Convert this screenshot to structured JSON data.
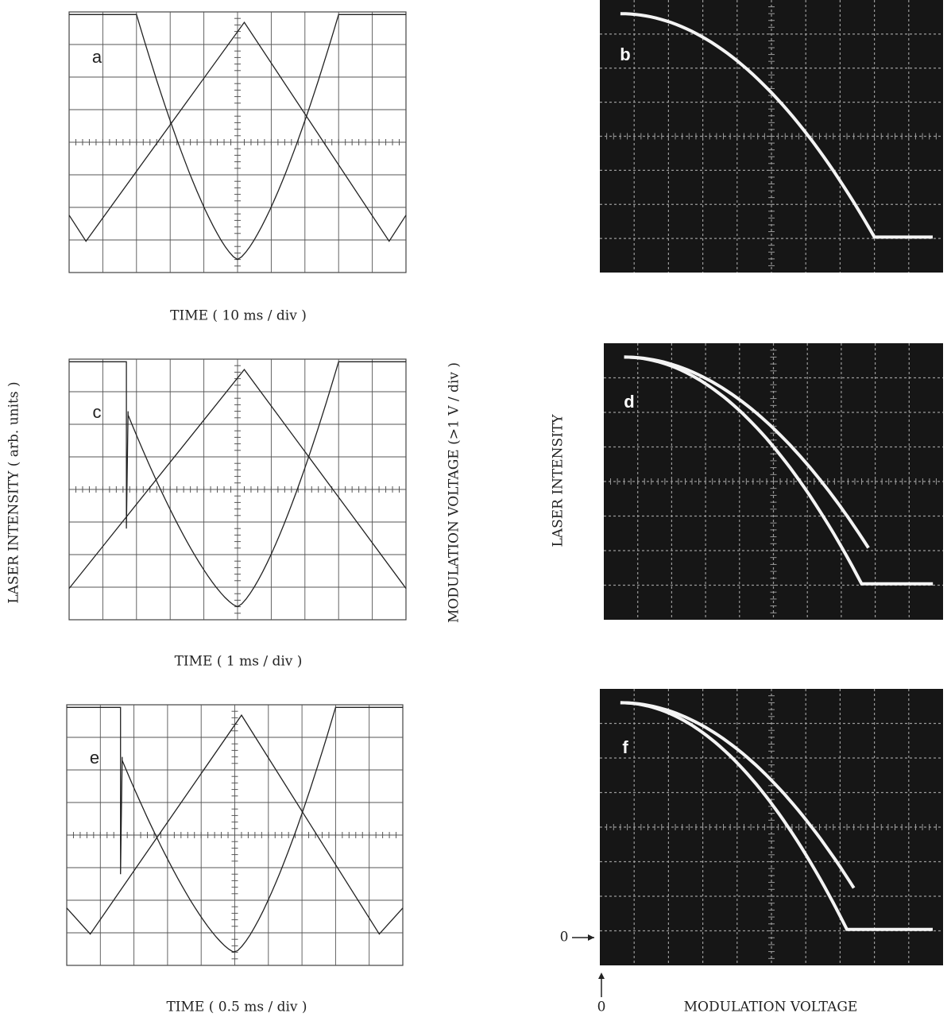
{
  "left_panels": [
    {
      "label": "a",
      "xlabel": "TIME ( 10 ms / div )"
    },
    {
      "label": "c",
      "xlabel": "TIME ( 1 ms / div )"
    },
    {
      "label": "e",
      "xlabel": "TIME ( 0.5 ms / div )"
    }
  ],
  "right_panels": [
    {
      "label": "b"
    },
    {
      "label": "d"
    },
    {
      "label": "f"
    }
  ],
  "ylabel_left": "LASER INTENSITY ( arb. units )",
  "ylabel_mid": "MODULATION VOLTAGE (>1 V / div )",
  "ylabel_right": "LASER INTENSITY",
  "xlabel_right": "MODULATION VOLTAGE",
  "zero_y": "0",
  "zero_x": "0"
}
